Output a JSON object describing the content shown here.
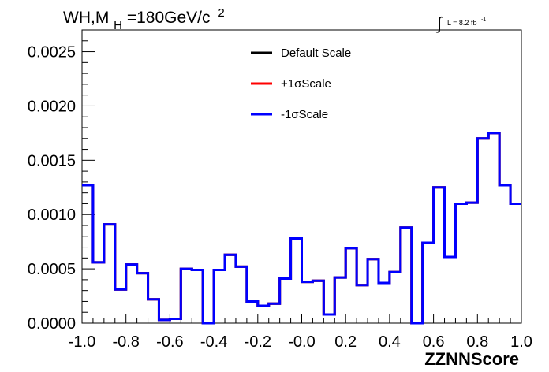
{
  "chart_data": {
    "type": "line",
    "title": {
      "prefix": "WH,M",
      "subscript": "H",
      "suffix": "=180GeV/c",
      "superscript": "2"
    },
    "lumi": {
      "integral_symbol": "∫",
      "text": "L = 8.2 fb",
      "exponent": "-1"
    },
    "xlabel": "ZZNNScore",
    "ylabel": "",
    "xlim": [
      -1.0,
      1.0
    ],
    "ylim": [
      0.0,
      0.0027
    ],
    "x_ticks": [
      -1.0,
      -0.8,
      -0.6,
      -0.4,
      -0.2,
      0.0,
      0.2,
      0.4,
      0.6,
      0.8,
      1.0
    ],
    "x_tick_labels": [
      "-1.0",
      "-0.8",
      "-0.6",
      "-0.4",
      "-0.2",
      "-0.0",
      "0.2",
      "0.4",
      "0.6",
      "0.8",
      "1.0"
    ],
    "y_ticks": [
      0.0,
      0.0005,
      0.001,
      0.0015,
      0.002,
      0.0025
    ],
    "y_tick_labels": [
      "0.0000",
      "0.0005",
      "0.0010",
      "0.0015",
      "0.0020",
      "0.0025"
    ],
    "bin_edges": [
      -1.0,
      -0.95,
      -0.9,
      -0.85,
      -0.8,
      -0.75,
      -0.7,
      -0.65,
      -0.6,
      -0.55,
      -0.5,
      -0.45,
      -0.4,
      -0.35,
      -0.3,
      -0.25,
      -0.2,
      -0.15,
      -0.1,
      -0.05,
      0.0,
      0.05,
      0.1,
      0.15,
      0.2,
      0.25,
      0.3,
      0.35,
      0.4,
      0.45,
      0.5,
      0.55,
      0.6,
      0.65,
      0.7,
      0.75,
      0.8,
      0.85,
      0.9,
      0.95,
      1.0
    ],
    "series": [
      {
        "name": "Default Scale",
        "color": "#000000",
        "values": [
          0.00127,
          0.00056,
          0.00091,
          0.00031,
          0.00054,
          0.00046,
          0.00022,
          3e-05,
          4e-05,
          0.0005,
          0.00049,
          0.0,
          0.00049,
          0.00063,
          0.00052,
          0.0002,
          0.00016,
          0.00018,
          0.00041,
          0.00078,
          0.00038,
          0.00039,
          8e-05,
          0.00042,
          0.00069,
          0.00035,
          0.00059,
          0.00037,
          0.00047,
          0.00088,
          0.0,
          0.00074,
          0.00125,
          0.00061,
          0.0011,
          0.00111,
          0.0017,
          0.00175,
          0.00127,
          0.0011
        ]
      },
      {
        "name": "+1σScale",
        "color": "#ff0000",
        "values": [
          0.00127,
          0.00056,
          0.00091,
          0.00031,
          0.00054,
          0.00046,
          0.00022,
          3e-05,
          4e-05,
          0.0005,
          0.00049,
          0.0,
          0.00049,
          0.00063,
          0.00052,
          0.0002,
          0.00016,
          0.00018,
          0.00041,
          0.00078,
          0.00038,
          0.00039,
          8e-05,
          0.00042,
          0.00069,
          0.00035,
          0.00059,
          0.00037,
          0.00047,
          0.00088,
          0.0,
          0.00074,
          0.00125,
          0.00061,
          0.0011,
          0.00111,
          0.0017,
          0.00175,
          0.00127,
          0.0011
        ]
      },
      {
        "name": "-1σScale",
        "color": "#0000ff",
        "values": [
          0.00127,
          0.00056,
          0.00091,
          0.00031,
          0.00054,
          0.00046,
          0.00022,
          3e-05,
          4e-05,
          0.0005,
          0.00049,
          0.0,
          0.00049,
          0.00063,
          0.00052,
          0.0002,
          0.00016,
          0.00018,
          0.00041,
          0.00078,
          0.00038,
          0.00039,
          8e-05,
          0.00042,
          0.00069,
          0.00035,
          0.00059,
          0.00037,
          0.00047,
          0.00088,
          0.0,
          0.00074,
          0.00125,
          0.00061,
          0.0011,
          0.00111,
          0.0017,
          0.00175,
          0.00127,
          0.0011
        ]
      }
    ],
    "legend": {
      "placement": "top-center",
      "entries": [
        "Default Scale",
        "+1σScale",
        "-1σScale"
      ]
    },
    "grid": false
  }
}
